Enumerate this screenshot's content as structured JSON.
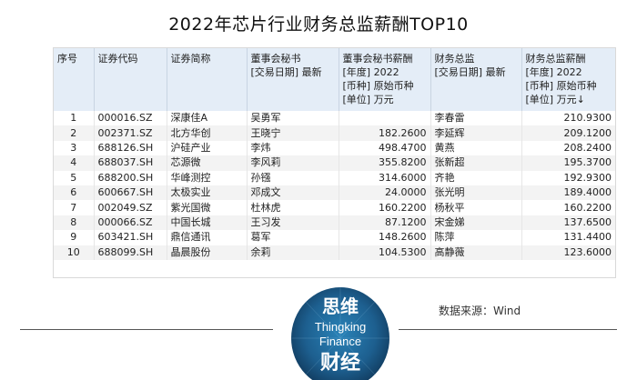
{
  "title": "2022年芯片行业财务总监薪酬TOP10",
  "headers": [
    [
      "序号"
    ],
    [
      "证券代码"
    ],
    [
      "证券简称"
    ],
    [
      "董事会秘书",
      "[交易日期] 最新"
    ],
    [
      "董事会秘书薪酬",
      "[年度] 2022",
      "[币种] 原始币种",
      "[单位] 万元"
    ],
    [
      "财务总监",
      "[交易日期] 最新"
    ],
    [
      "财务总监薪酬",
      "[年度] 2022",
      "[币种] 原始币种",
      "[单位] 万元↓"
    ]
  ],
  "rows": [
    [
      "1",
      "000016.SZ",
      "深康佳A",
      "吴勇军",
      "",
      "李春雷",
      "210.9300"
    ],
    [
      "2",
      "002371.SZ",
      "北方华创",
      "王晓宁",
      "182.2600",
      "李延辉",
      "209.1200"
    ],
    [
      "3",
      "688126.SH",
      "沪硅产业",
      "李炜",
      "498.4700",
      "黄燕",
      "208.2400"
    ],
    [
      "4",
      "688037.SH",
      "芯源微",
      "李风莉",
      "355.8200",
      "张新超",
      "195.3700"
    ],
    [
      "5",
      "688200.SH",
      "华峰测控",
      "孙镪",
      "314.6000",
      "齐艳",
      "192.9300"
    ],
    [
      "6",
      "600667.SH",
      "太极实业",
      "邓成文",
      "24.0000",
      "张光明",
      "189.4000"
    ],
    [
      "7",
      "002049.SZ",
      "紫光国微",
      "杜林虎",
      "160.2200",
      "杨秋平",
      "160.2200"
    ],
    [
      "8",
      "000066.SZ",
      "中国长城",
      "王习发",
      "87.1200",
      "宋金娣",
      "137.6500"
    ],
    [
      "9",
      "603421.SH",
      "鼎信通讯",
      "葛军",
      "148.2600",
      "陈萍",
      "131.4400"
    ],
    [
      "10",
      "688099.SH",
      "晶晨股份",
      "余莉",
      "104.5300",
      "高静薇",
      "123.6000"
    ]
  ],
  "logo": {
    "line1": "思维",
    "line2": "Thingking",
    "line3": "Finance",
    "line4": "财经"
  },
  "source": "数据来源：Wind"
}
